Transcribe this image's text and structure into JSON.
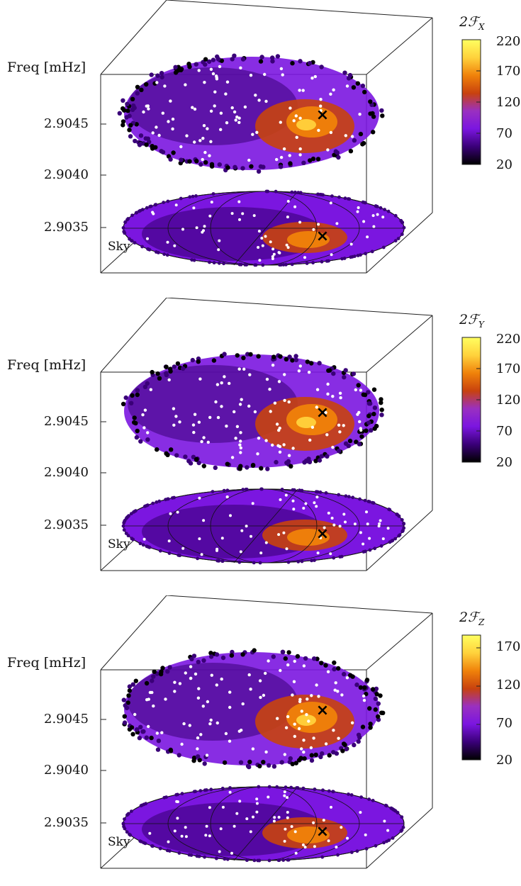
{
  "chart_data": [
    {
      "type": "scatter",
      "panel": "X",
      "ylabel": "Freq [mHz]",
      "y_ticks": [
        "2.9045",
        "2.9040",
        "2.9035"
      ],
      "sky_label": "Sky",
      "colorbar": {
        "title_prefix": "2ℱ",
        "title_sub": "X",
        "ticks": [
          "220",
          "170",
          "120",
          "70",
          "20"
        ],
        "range": [
          20,
          220
        ]
      },
      "peak_marker": "×",
      "colors": [
        "#000000",
        "#3a0078",
        "#7b16e0",
        "#9a30c0",
        "#c8420e",
        "#f0820a",
        "#ffd23c",
        "#ffff60"
      ]
    },
    {
      "type": "scatter",
      "panel": "Y",
      "ylabel": "Freq [mHz]",
      "y_ticks": [
        "2.9045",
        "2.9040",
        "2.9035"
      ],
      "sky_label": "Sky",
      "colorbar": {
        "title_prefix": "2ℱ",
        "title_sub": "Y",
        "ticks": [
          "220",
          "170",
          "120",
          "70",
          "20"
        ],
        "range": [
          20,
          220
        ]
      },
      "peak_marker": "×",
      "colors": [
        "#000000",
        "#3a0078",
        "#7b16e0",
        "#9a30c0",
        "#c8420e",
        "#f0820a",
        "#ffd23c",
        "#ffff60"
      ]
    },
    {
      "type": "scatter",
      "panel": "Z",
      "ylabel": "Freq [mHz]",
      "y_ticks": [
        "2.9045",
        "2.9040",
        "2.9035"
      ],
      "sky_label": "Sky",
      "colorbar": {
        "title_prefix": "2ℱ",
        "title_sub": "Z",
        "ticks": [
          "170",
          "120",
          "70",
          "20"
        ],
        "range": [
          20,
          190
        ]
      },
      "peak_marker": "×",
      "colors": [
        "#000000",
        "#3a0078",
        "#7b16e0",
        "#9a30c0",
        "#c8420e",
        "#f0820a",
        "#ffd23c",
        "#ffff60"
      ]
    }
  ]
}
